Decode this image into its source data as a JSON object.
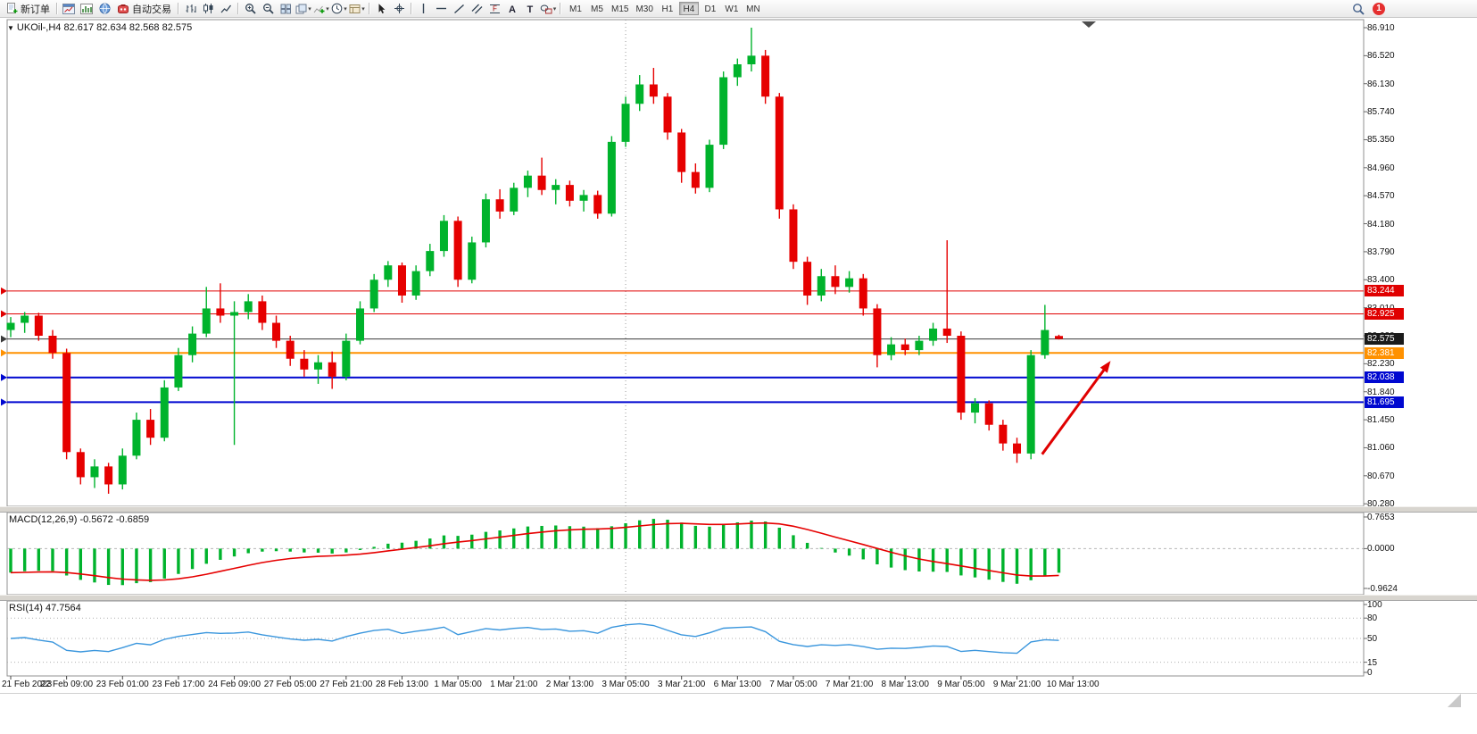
{
  "icons": {
    "dropdown": "▾",
    "one_click": "▼",
    "text_tool": "A",
    "label_tool": "T",
    "fibo_tool": "F"
  },
  "toolbar": {
    "new_order_label": "新订单",
    "autotrading_label": "自动交易",
    "timeframes": [
      "M1",
      "M5",
      "M15",
      "M30",
      "H1",
      "H4",
      "D1",
      "W1",
      "MN"
    ],
    "active_timeframe": "H4",
    "notification_count": "1"
  },
  "chart": {
    "title": "UKOil-,H4 82.617 82.634 82.568 82.575",
    "price_lines": [
      {
        "label": "83.244",
        "price": 83.244,
        "color": "#e00000",
        "width": 1,
        "badge_bg": "#e00000",
        "badge_fg": "#ffffff",
        "kind": "resistance"
      },
      {
        "label": "82.925",
        "price": 82.925,
        "color": "#e00000",
        "width": 1,
        "badge_bg": "#e00000",
        "badge_fg": "#ffffff",
        "kind": "resistance"
      },
      {
        "label": "82.575",
        "price": 82.575,
        "color": "#3a3a3a",
        "width": 1,
        "badge_bg": "#1a1a1a",
        "badge_fg": "#ffffff",
        "kind": "bid"
      },
      {
        "label": "82.381",
        "price": 82.381,
        "color": "#ff9100",
        "width": 2,
        "badge_bg": "#ff9100",
        "badge_fg": "#ffffff",
        "kind": "support"
      },
      {
        "label": "82.038",
        "price": 82.038,
        "color": "#0008d0",
        "width": 2,
        "badge_bg": "#0008d0",
        "badge_fg": "#ffffff",
        "kind": "support"
      },
      {
        "label": "81.695",
        "price": 81.695,
        "color": "#0008d0",
        "width": 2,
        "badge_bg": "#0008d0",
        "badge_fg": "#ffffff",
        "kind": "support"
      }
    ]
  },
  "panels": {
    "macd_title": "MACD(12,26,9) -0.5672 -0.6859",
    "rsi_title": "RSI(14) 47.7564"
  },
  "chart_data": {
    "type": "candlestick",
    "symbol": "UKOil",
    "period": "H4",
    "last_bar_ohlc": {
      "open": "82.617",
      "high": "82.634",
      "low": "82.568",
      "close": "82.575"
    },
    "y_axis": {
      "labels": [
        "86.910",
        "86.520",
        "86.130",
        "85.740",
        "85.350",
        "84.960",
        "84.570",
        "84.180",
        "83.790",
        "83.400",
        "83.010",
        "82.620",
        "82.230",
        "81.840",
        "81.450",
        "81.060",
        "80.670",
        "80.280"
      ],
      "top": 86.91,
      "step": 0.39
    },
    "x_labels": [
      "21 Feb 2023",
      "22 Feb 09:00",
      "23 Feb 01:00",
      "23 Feb 17:00",
      "24 Feb 09:00",
      "27 Feb 05:00",
      "27 Feb 21:00",
      "28 Feb 13:00",
      "1 Mar 05:00",
      "1 Mar 21:00",
      "2 Mar 13:00",
      "3 Mar 05:00",
      "3 Mar 21:00",
      "6 Mar 13:00",
      "7 Mar 05:00",
      "7 Mar 21:00",
      "8 Mar 13:00",
      "9 Mar 05:00",
      "9 Mar 21:00",
      "10 Mar 13:00"
    ],
    "bars_per_x_label": 4,
    "colors": {
      "bull": "#00b32c",
      "bear": "#e60000"
    },
    "candles": [
      [
        82.7,
        82.88,
        82.6,
        82.8
      ],
      [
        82.8,
        82.95,
        82.66,
        82.9
      ],
      [
        82.9,
        82.94,
        82.55,
        82.62
      ],
      [
        82.62,
        82.7,
        82.3,
        82.38
      ],
      [
        82.38,
        82.44,
        80.9,
        81.0
      ],
      [
        81.0,
        81.05,
        80.55,
        80.65
      ],
      [
        80.65,
        80.9,
        80.5,
        80.8
      ],
      [
        80.8,
        80.85,
        80.42,
        80.55
      ],
      [
        80.55,
        81.05,
        80.48,
        80.95
      ],
      [
        80.95,
        81.55,
        80.9,
        81.45
      ],
      [
        81.45,
        81.6,
        81.1,
        81.2
      ],
      [
        81.2,
        82.0,
        81.15,
        81.9
      ],
      [
        81.9,
        82.45,
        81.85,
        82.35
      ],
      [
        82.35,
        82.75,
        82.25,
        82.65
      ],
      [
        82.65,
        83.3,
        82.6,
        83.0
      ],
      [
        83.0,
        83.35,
        82.8,
        82.9
      ],
      [
        82.9,
        83.1,
        81.1,
        82.95
      ],
      [
        82.95,
        83.2,
        82.85,
        83.1
      ],
      [
        83.1,
        83.18,
        82.7,
        82.8
      ],
      [
        82.8,
        82.9,
        82.45,
        82.55
      ],
      [
        82.55,
        82.62,
        82.2,
        82.3
      ],
      [
        82.3,
        82.42,
        82.05,
        82.15
      ],
      [
        82.15,
        82.35,
        81.95,
        82.25
      ],
      [
        82.25,
        82.4,
        81.88,
        82.05
      ],
      [
        82.05,
        82.65,
        82.0,
        82.55
      ],
      [
        82.55,
        83.1,
        82.5,
        83.0
      ],
      [
        83.0,
        83.48,
        82.95,
        83.4
      ],
      [
        83.4,
        83.66,
        83.3,
        83.6
      ],
      [
        83.6,
        83.64,
        83.08,
        83.18
      ],
      [
        83.18,
        83.6,
        83.12,
        83.52
      ],
      [
        83.52,
        83.9,
        83.45,
        83.8
      ],
      [
        83.8,
        84.3,
        83.72,
        84.22
      ],
      [
        84.22,
        84.28,
        83.3,
        83.4
      ],
      [
        83.4,
        84.0,
        83.35,
        83.92
      ],
      [
        83.92,
        84.6,
        83.85,
        84.52
      ],
      [
        84.52,
        84.66,
        84.25,
        84.35
      ],
      [
        84.35,
        84.75,
        84.3,
        84.68
      ],
      [
        84.68,
        84.92,
        84.55,
        84.85
      ],
      [
        84.85,
        85.1,
        84.58,
        84.65
      ],
      [
        84.65,
        84.8,
        84.45,
        84.72
      ],
      [
        84.72,
        84.78,
        84.42,
        84.5
      ],
      [
        84.5,
        84.65,
        84.35,
        84.58
      ],
      [
        84.58,
        84.64,
        84.25,
        84.32
      ],
      [
        84.32,
        85.4,
        84.28,
        85.32
      ],
      [
        85.32,
        85.95,
        85.25,
        85.85
      ],
      [
        85.85,
        86.25,
        85.75,
        86.12
      ],
      [
        86.12,
        86.35,
        85.85,
        85.95
      ],
      [
        85.95,
        86.0,
        85.35,
        85.45
      ],
      [
        85.45,
        85.5,
        84.75,
        84.9
      ],
      [
        84.9,
        85.02,
        84.6,
        84.68
      ],
      [
        84.68,
        85.35,
        84.62,
        85.28
      ],
      [
        85.28,
        86.3,
        85.22,
        86.22
      ],
      [
        86.22,
        86.48,
        86.1,
        86.4
      ],
      [
        86.4,
        86.91,
        86.3,
        86.52
      ],
      [
        86.52,
        86.6,
        85.85,
        85.95
      ],
      [
        85.95,
        86.0,
        84.25,
        84.38
      ],
      [
        84.38,
        84.45,
        83.55,
        83.65
      ],
      [
        83.65,
        83.72,
        83.05,
        83.18
      ],
      [
        83.18,
        83.55,
        83.1,
        83.45
      ],
      [
        83.45,
        83.6,
        83.2,
        83.3
      ],
      [
        83.3,
        83.52,
        83.22,
        83.42
      ],
      [
        83.42,
        83.48,
        82.9,
        83.0
      ],
      [
        83.0,
        83.06,
        82.18,
        82.35
      ],
      [
        82.35,
        82.6,
        82.28,
        82.5
      ],
      [
        82.5,
        82.58,
        82.35,
        82.42
      ],
      [
        82.42,
        82.62,
        82.35,
        82.55
      ],
      [
        82.55,
        82.8,
        82.48,
        82.72
      ],
      [
        82.72,
        83.95,
        82.52,
        82.62
      ],
      [
        82.62,
        82.68,
        81.45,
        81.55
      ],
      [
        81.55,
        81.75,
        81.4,
        81.68
      ],
      [
        81.68,
        81.72,
        81.3,
        81.38
      ],
      [
        81.38,
        81.45,
        81.02,
        81.12
      ],
      [
        81.12,
        81.2,
        80.85,
        80.98
      ],
      [
        80.98,
        82.42,
        80.9,
        82.35
      ],
      [
        82.35,
        83.05,
        82.3,
        82.7
      ],
      [
        82.617,
        82.634,
        82.568,
        82.575
      ]
    ],
    "indicators": [
      {
        "type": "MACD",
        "params": [
          12,
          26,
          9
        ],
        "display_values": "-0.5672 -0.6859",
        "axis_labels": [
          "0.7653",
          "0.0000",
          "-0.9624"
        ],
        "axis_range": [
          -0.9624,
          0.7653
        ],
        "histogram_color": "#00b32c",
        "signal_color": "#e60000"
      },
      {
        "type": "RSI",
        "params": [
          14
        ],
        "display_value": "47.7564",
        "axis_labels": [
          "100",
          "80",
          "50",
          "15",
          "0"
        ],
        "levels": [
          80,
          50,
          15
        ],
        "line_color": "#3a96dd"
      }
    ],
    "annotations": [
      {
        "type": "arrow",
        "color": "#e00000",
        "from": {
          "bar": 73.8,
          "price": 80.97
        },
        "to": {
          "bar": 78.7,
          "price": 82.27
        }
      }
    ],
    "month_separator_bar": 44
  }
}
